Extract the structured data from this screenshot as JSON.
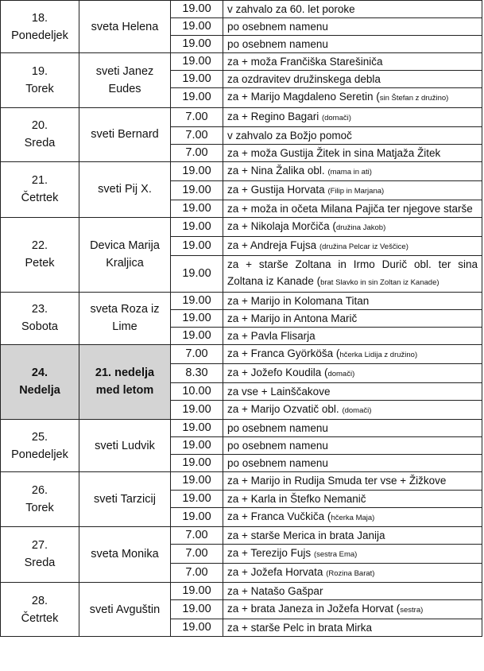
{
  "days": [
    {
      "date": "18.",
      "weekday": "Ponedeljek",
      "saint": "sveta Helena",
      "masses": [
        {
          "time": "19.00",
          "intention": "v zahvalo za 60. let poroke",
          "note": ""
        },
        {
          "time": "19.00",
          "intention": "po osebnem namenu",
          "note": ""
        },
        {
          "time": "19.00",
          "intention": "po osebnem namenu",
          "note": ""
        }
      ]
    },
    {
      "date": "19.",
      "weekday": "Torek",
      "saint": "sveti Janez Eudes",
      "masses": [
        {
          "time": "19.00",
          "intention": "za + moža Frančiška Starešiniča",
          "note": ""
        },
        {
          "time": "19.00",
          "intention": "za ozdravitev družinskega debla",
          "note": ""
        },
        {
          "time": "19.00",
          "intention": "za + Marijo Magdaleno Seretin (",
          "note": "sin Štefan z družino)"
        }
      ]
    },
    {
      "date": "20.",
      "weekday": "Sreda",
      "saint": "sveti Bernard",
      "masses": [
        {
          "time": "7.00",
          "intention": "za + Regino Bagari ",
          "note": "(domači)"
        },
        {
          "time": "7.00",
          "intention": "v zahvalo za Božjo pomoč",
          "note": ""
        },
        {
          "time": "7.00",
          "intention": "za + moža Gustija Žitek in sina Matjaža Žitek",
          "note": ""
        }
      ]
    },
    {
      "date": "21.",
      "weekday": "Četrtek",
      "saint": "sveti Pij X.",
      "masses": [
        {
          "time": "19.00",
          "intention": "za + Nina Žalika obl. ",
          "note": "(mama in ati)"
        },
        {
          "time": "19.00",
          "intention": "za + Gustija Horvata ",
          "note": "(Filip in Marjana)"
        },
        {
          "time": "19.00",
          "intention": "za + moža in očeta Milana Pajiča ter njegove starše",
          "note": ""
        }
      ]
    },
    {
      "date": "22.",
      "weekday": "Petek",
      "saint": "Devica Marija Kraljica",
      "masses": [
        {
          "time": "19.00",
          "intention": "za + Nikolaja Morčiča (",
          "note": "družina Jakob)"
        },
        {
          "time": "19.00",
          "intention": "za + Andreja Fujsa ",
          "note": "(družina Pelcar iz Veščice)"
        },
        {
          "time": "19.00",
          "intention": "za + starše Zoltana in Irmo Durič obl. ter sina Zoltana iz Kanade (",
          "note": "brat Slavko in sin Zoltan iz Kanade)"
        }
      ]
    },
    {
      "date": "23.",
      "weekday": "Sobota",
      "saint": "sveta Roza iz Lime",
      "masses": [
        {
          "time": "19.00",
          "intention": "za + Marijo in Kolomana Titan",
          "note": ""
        },
        {
          "time": "19.00",
          "intention": "za + Marijo in Antona Marič",
          "note": ""
        },
        {
          "time": "19.00",
          "intention": "za + Pavla Flisarja",
          "note": ""
        }
      ]
    },
    {
      "date": "24.",
      "weekday": "Nedelja",
      "saint": "21. nedelja med letom",
      "shaded": true,
      "masses": [
        {
          "time": "7.00",
          "intention": "za + Franca Györköša (",
          "note": "hčerka Lidija z družino)"
        },
        {
          "time": "8.30",
          "intention": "za + Jožefo Koudila (",
          "note": "domači)"
        },
        {
          "time": "10.00",
          "intention": "za vse + Lainščakove",
          "note": ""
        },
        {
          "time": "19.00",
          "intention": "za + Marijo Ozvatič obl. ",
          "note": "(domači)"
        }
      ]
    },
    {
      "date": "25.",
      "weekday": "Ponedeljek",
      "saint": "sveti Ludvik",
      "masses": [
        {
          "time": "19.00",
          "intention": "po osebnem namenu",
          "note": ""
        },
        {
          "time": "19.00",
          "intention": "po osebnem namenu",
          "note": ""
        },
        {
          "time": "19.00",
          "intention": "po osebnem namenu",
          "note": ""
        }
      ]
    },
    {
      "date": "26.",
      "weekday": "Torek",
      "saint": "sveti Tarzicij",
      "masses": [
        {
          "time": "19.00",
          "intention": "za + Marijo in Rudija Smuda ter vse + Žižkove",
          "note": ""
        },
        {
          "time": "19.00",
          "intention": "za + Karla in Štefko Nemanič",
          "note": ""
        },
        {
          "time": "19.00",
          "intention": "za + Franca Vučkiča (",
          "note": "hčerka Maja)"
        }
      ]
    },
    {
      "date": "27.",
      "weekday": "Sreda",
      "saint": "sveta Monika",
      "masses": [
        {
          "time": "7.00",
          "intention": "za + starše Merica in brata Janija",
          "note": ""
        },
        {
          "time": "7.00",
          "intention": "za + Terezijo Fujs ",
          "note": "(sestra Ema)"
        },
        {
          "time": "7.00",
          "intention": "za + Jožefa Horvata ",
          "note": "(Rozina Barat)"
        }
      ]
    },
    {
      "date": "28.",
      "weekday": "Četrtek",
      "saint": "sveti Avguštin",
      "masses": [
        {
          "time": "19.00",
          "intention": "za + Natašo Gašpar",
          "note": ""
        },
        {
          "time": "19.00",
          "intention": "za + brata Janeza in Jožefa Horvat (",
          "note": "sestra)"
        },
        {
          "time": "19.00",
          "intention": "za + starše Pelc in brata Mirka",
          "note": ""
        }
      ]
    }
  ]
}
